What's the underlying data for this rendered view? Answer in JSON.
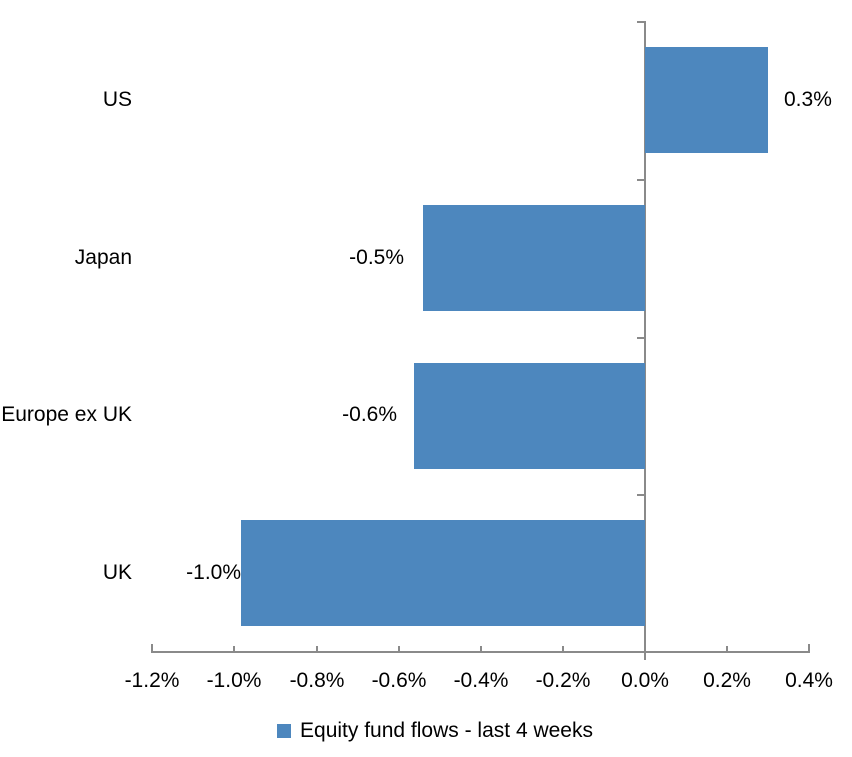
{
  "chart_data": {
    "type": "bar",
    "orientation": "horizontal",
    "categories": [
      "US",
      "Japan",
      "Europe ex UK",
      "UK"
    ],
    "values": [
      0.3,
      -0.5,
      -0.6,
      -1.0
    ],
    "value_labels": [
      "0.3%",
      "-0.5%",
      "-0.6%",
      "-1.0%"
    ],
    "plot_values": [
      0.3,
      -0.54,
      -0.562,
      -0.985
    ],
    "label_gaps": [
      16,
      19,
      17,
      0
    ],
    "series": [
      {
        "name": "Equity fund flows - last 4 weeks",
        "values": [
          0.3,
          -0.5,
          -0.6,
          -1.0
        ]
      }
    ],
    "series_name": "Equity fund flows - last 4 weeks",
    "xlabel": "",
    "ylabel": "",
    "xlim": [
      -1.2,
      0.4
    ],
    "x_tick_values": [
      -1.2,
      -1.0,
      -0.8,
      -0.6,
      -0.4,
      -0.2,
      0.0,
      0.2,
      0.4
    ],
    "x_tick_labels": [
      "-1.2%",
      "-1.0%",
      "-0.8%",
      "-0.6%",
      "-0.4%",
      "-0.2%",
      "0.0%",
      "0.2%",
      "0.4%"
    ],
    "grid": false,
    "legend_position": "bottom",
    "bar_color": "#4D87BE",
    "axis_color": "#8A8A8A",
    "text_color": "#000000",
    "background_color": "#FFFFFF"
  }
}
